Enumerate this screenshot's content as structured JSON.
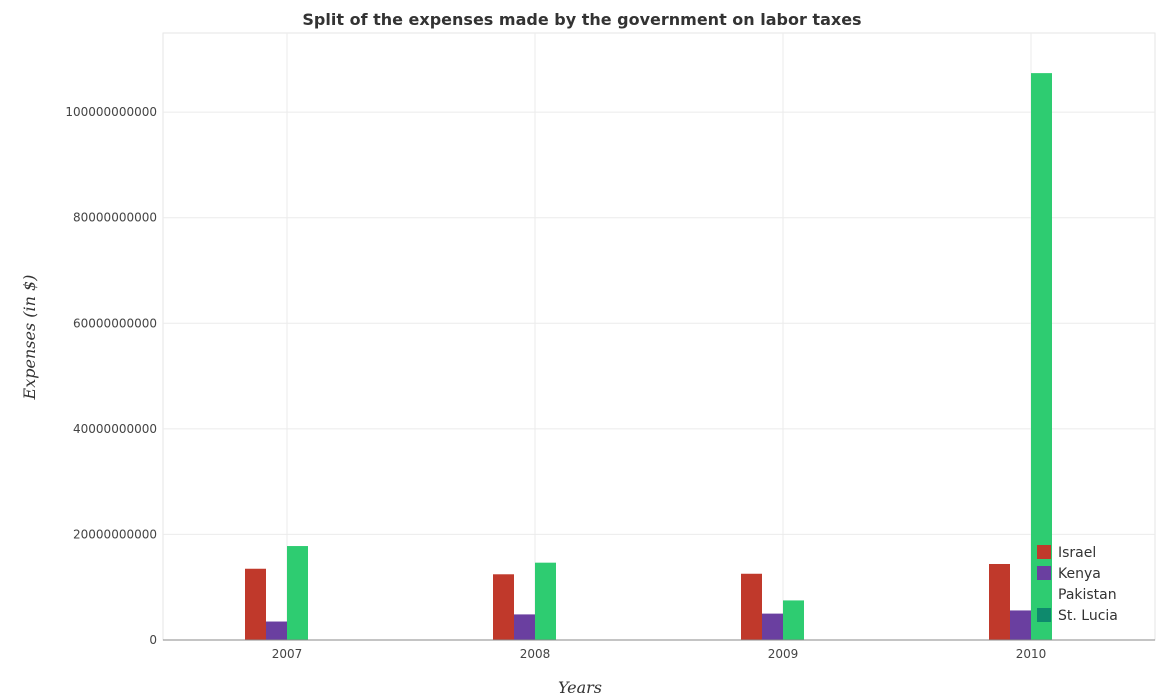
{
  "chart_data": {
    "type": "bar",
    "title": "Split of the expenses made by the government on labor taxes",
    "xlabel": "Years",
    "ylabel": "Expenses (in $)",
    "categories": [
      "2007",
      "2008",
      "2009",
      "2010"
    ],
    "ylim": [
      0,
      115000000000
    ],
    "yticks": [
      0,
      20000000000,
      40000000000,
      60000000000,
      80000000000,
      100000000000
    ],
    "ytick_labels": [
      "0",
      "20000000000",
      "40000000000",
      "60000000000",
      "80000000000",
      "100000000000"
    ],
    "grid": true,
    "legend_position": "bottom-right",
    "series": [
      {
        "name": "Israel",
        "color": "#c0392b",
        "values": [
          13500000000,
          12450000000,
          12550000000,
          14400000000
        ]
      },
      {
        "name": "Kenya",
        "color": "#6a3fa0",
        "values": [
          3500000000,
          4850000000,
          5000000000,
          5600000000
        ]
      },
      {
        "name": "Pakistan",
        "color": "#2ecc71",
        "values": [
          17800000000,
          14650000000,
          7500000000,
          107400000000
        ]
      },
      {
        "name": "St. Lucia",
        "color": "#0e8a6d",
        "values": [
          60000000,
          55000000,
          50000000,
          55000000
        ]
      }
    ]
  }
}
